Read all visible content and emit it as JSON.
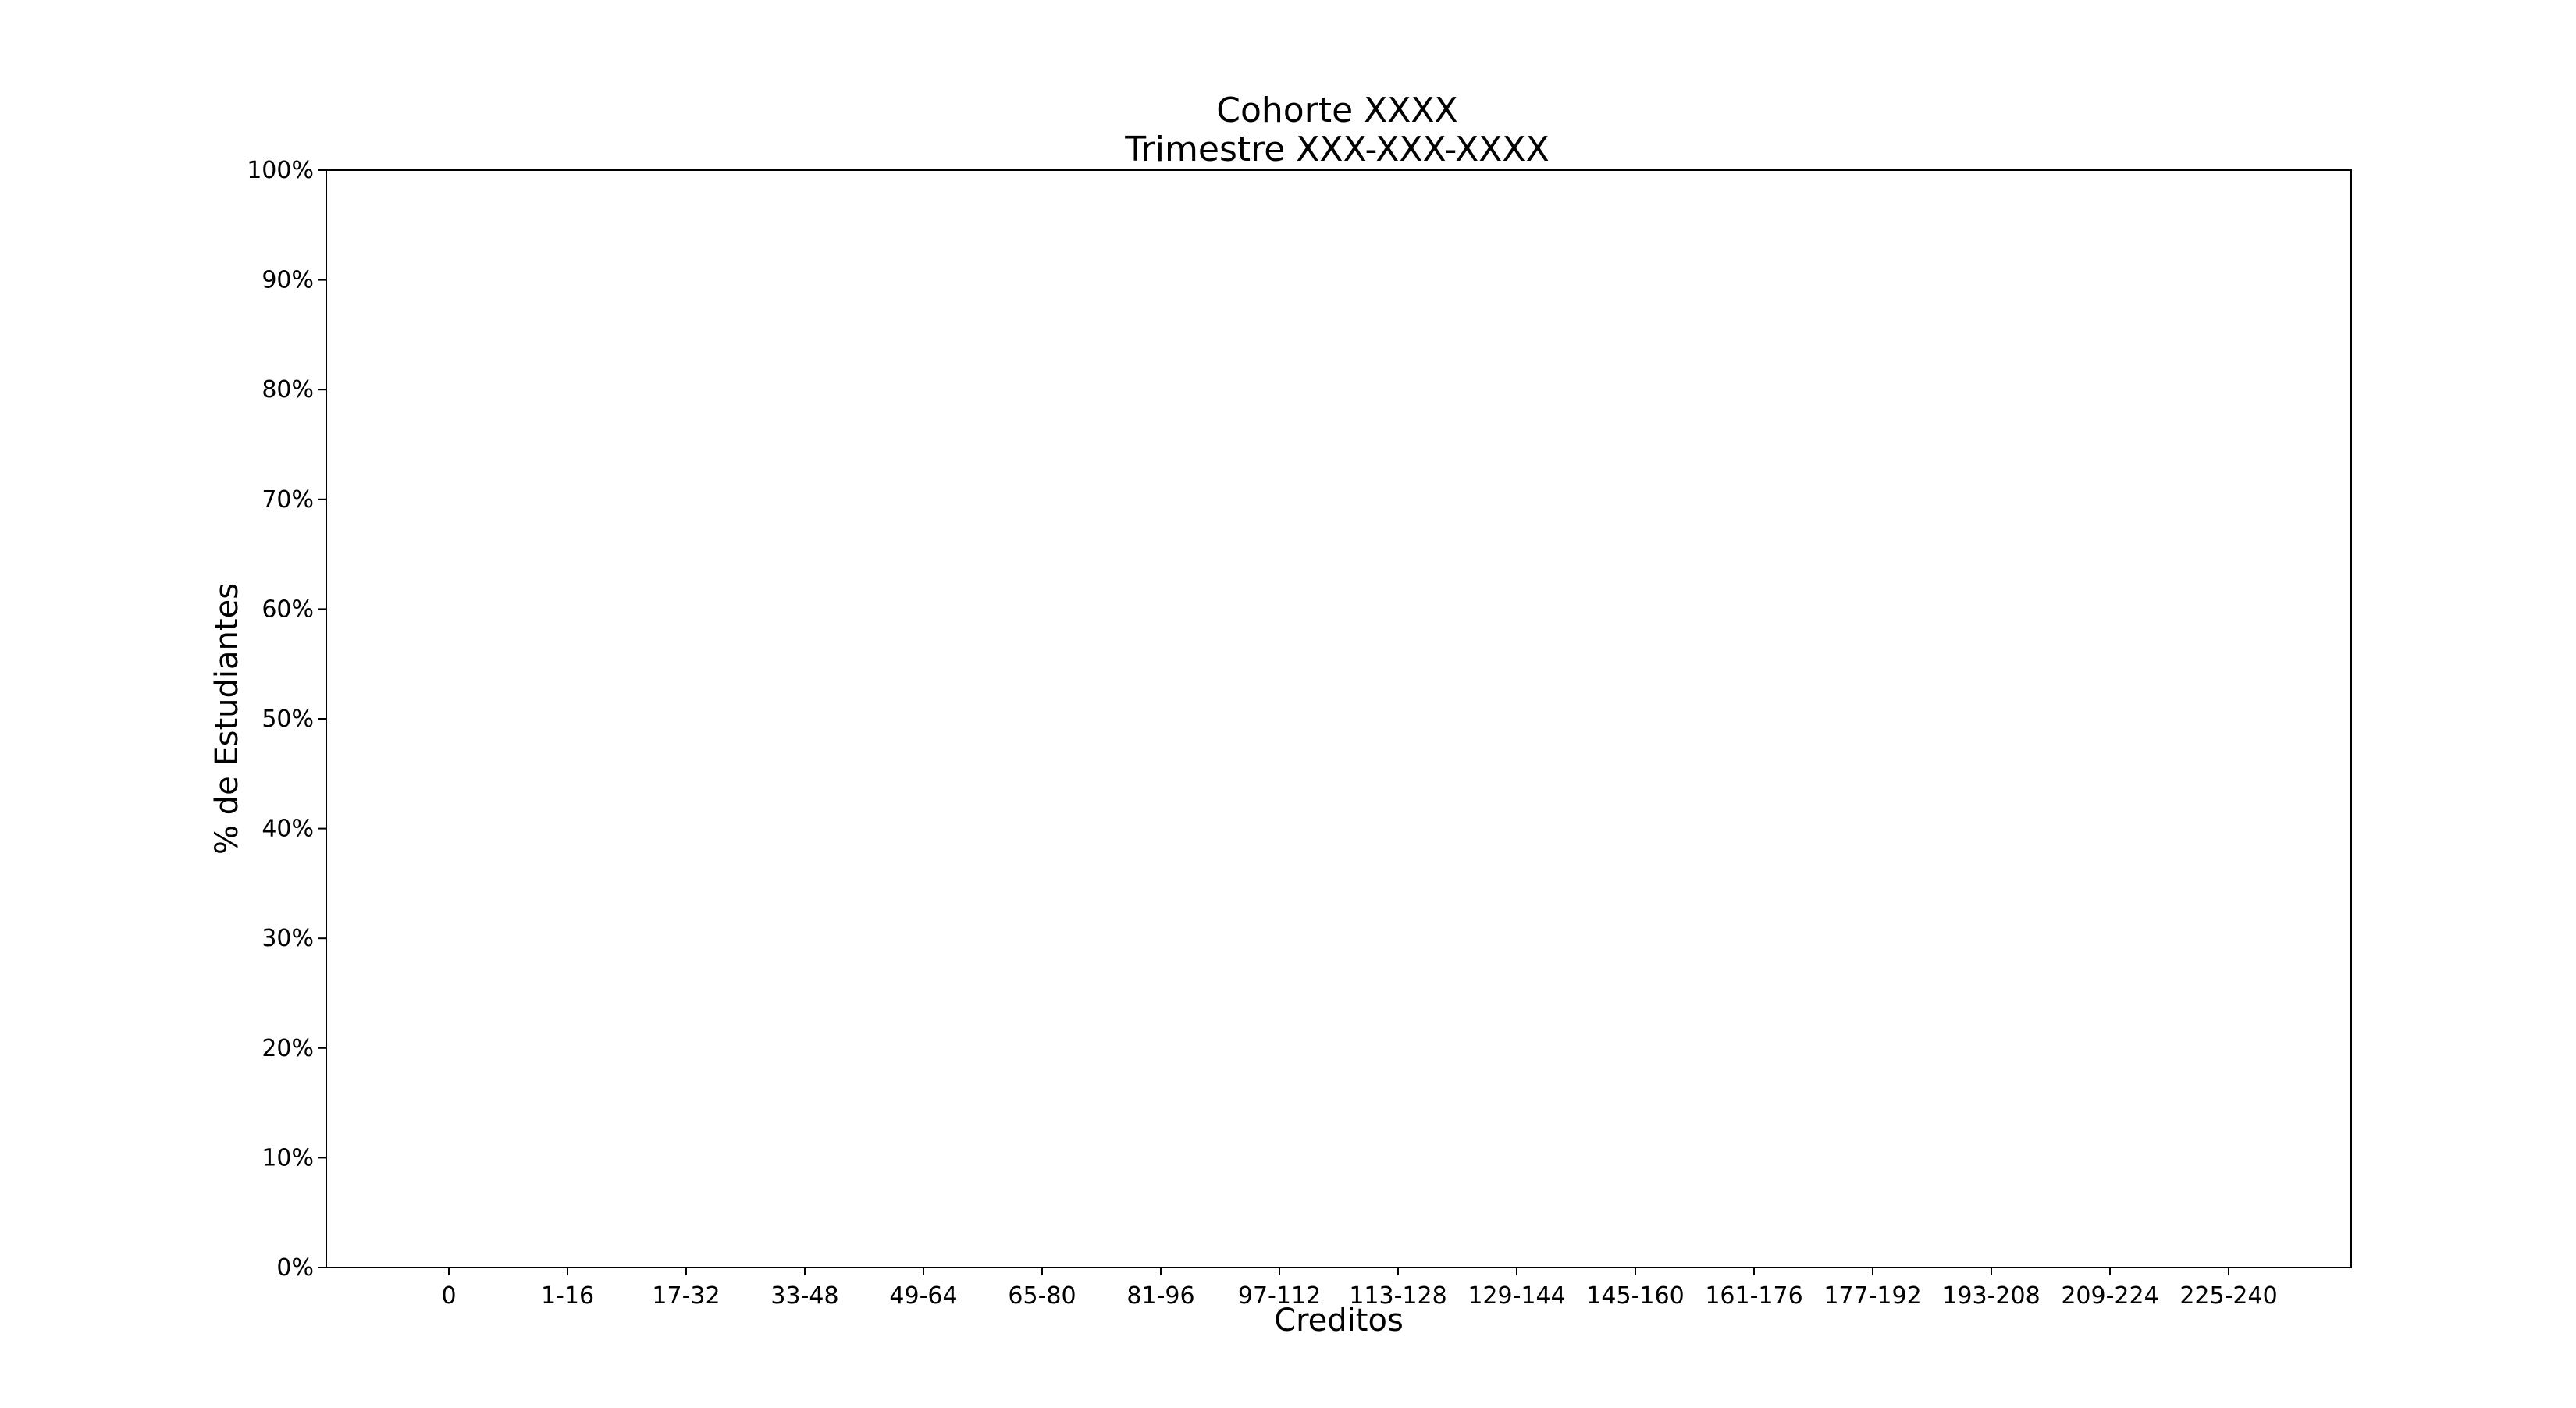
{
  "chart_data": {
    "type": "bar",
    "title": "Cohorte XXXX",
    "subtitle": "Trimestre XXX-XXX-XXXX",
    "xlabel": "Creditos",
    "ylabel": "% de Estudiantes",
    "categories": [
      "0",
      "1-16",
      "17-32",
      "33-48",
      "49-64",
      "65-80",
      "81-96",
      "97-112",
      "113-128",
      "129-144",
      "145-160",
      "161-176",
      "177-192",
      "193-208",
      "209-224",
      "225-240"
    ],
    "series": [],
    "ylim": [
      0,
      100
    ],
    "yticks": [
      0,
      10,
      20,
      30,
      40,
      50,
      60,
      70,
      80,
      90,
      100
    ],
    "ytick_format": "%",
    "grid": false,
    "legend": "none"
  }
}
